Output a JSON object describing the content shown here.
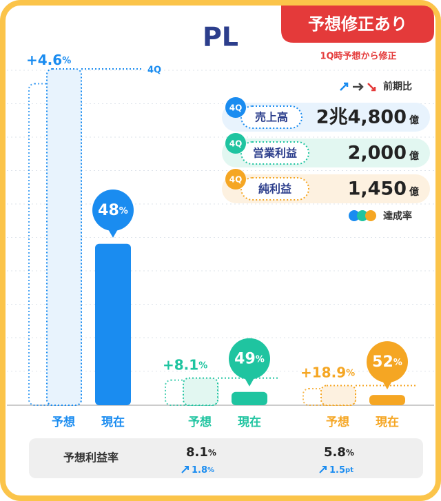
{
  "title": "PL",
  "badge": "予想修正あり",
  "badge_note": "1Q時予想から修正",
  "change_legend": "前期比",
  "rate_legend": "達成率",
  "percent_unit": "%",
  "bar_labels": [
    "予想",
    "現在"
  ],
  "margin_label": "予想利益率",
  "items": [
    {
      "tag": "4Q",
      "name": "売上高",
      "forecast": 24800,
      "forecast_label": "2兆4,800",
      "unit": "億",
      "color": "#1a8cf0",
      "light": "#e8f3fd",
      "revision": 4.6,
      "revision_label": "+4.6",
      "achievement": 48
    },
    {
      "tag": "4Q",
      "name": "営業利益",
      "forecast": 2000,
      "forecast_label": "2,000",
      "unit": "億",
      "color": "#1fc4a0",
      "light": "#e2f7f1",
      "revision": 8.1,
      "revision_label": "+8.1",
      "achievement": 49,
      "margin": {
        "value": 8.1,
        "unit": "%",
        "change": 1.8,
        "change_unit": "%"
      }
    },
    {
      "tag": "4Q",
      "name": "純利益",
      "forecast": 1450,
      "forecast_label": "1,450",
      "unit": "億",
      "color": "#f5a623",
      "light": "#fdf1e0",
      "revision": 18.9,
      "revision_label": "+18.9",
      "achievement": 52,
      "margin": {
        "value": 5.8,
        "unit": "%",
        "change": 1.5,
        "change_unit": "pt"
      }
    }
  ]
}
